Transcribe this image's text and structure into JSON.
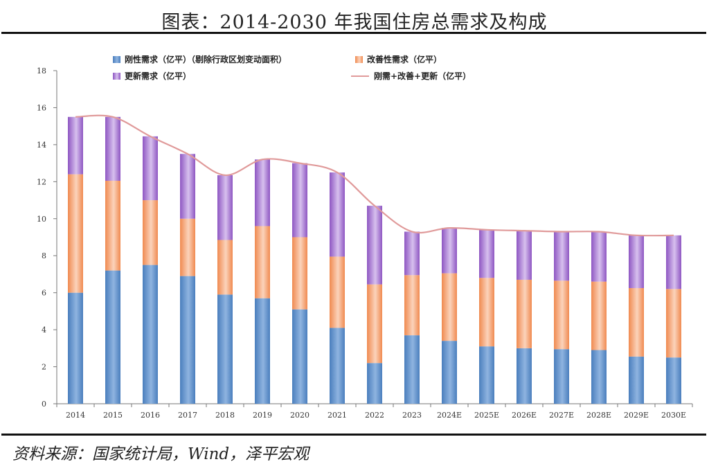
{
  "title": "图表：2014-2030 年我国住房总需求及构成",
  "source": "资料来源：国家统计局，Wind，泽平宏观",
  "colors": {
    "rigid": "#4a7ebd",
    "improve": "#f08a50",
    "renew": "#8e56c2",
    "line": "#e09a9a"
  },
  "chart_data": {
    "type": "bar",
    "stacked": true,
    "categories": [
      "2014",
      "2015",
      "2016",
      "2017",
      "2018",
      "2019",
      "2020",
      "2021",
      "2022",
      "2023",
      "2024E",
      "2025E",
      "2026E",
      "2027E",
      "2028E",
      "2029E",
      "2030E"
    ],
    "series": [
      {
        "name": "刚性需求（亿平）（剔除行政区划变动面积）",
        "values": [
          6.0,
          7.2,
          7.5,
          6.9,
          5.9,
          5.7,
          5.1,
          4.1,
          2.2,
          3.7,
          3.4,
          3.1,
          3.0,
          2.95,
          2.9,
          2.55,
          2.5
        ]
      },
      {
        "name": "改善性需求（亿平）",
        "values": [
          6.4,
          4.85,
          3.5,
          3.1,
          2.95,
          3.9,
          3.9,
          3.85,
          4.25,
          3.25,
          3.65,
          3.7,
          3.7,
          3.7,
          3.7,
          3.7,
          3.7
        ]
      },
      {
        "name": "更新需求（亿平）",
        "values": [
          3.1,
          3.45,
          3.45,
          3.5,
          3.5,
          3.6,
          4.0,
          4.55,
          4.25,
          2.35,
          2.45,
          2.6,
          2.65,
          2.65,
          2.7,
          2.85,
          2.9
        ]
      },
      {
        "name": "刚需+改善+更新（亿平）",
        "type": "line",
        "values": [
          15.5,
          15.5,
          14.45,
          13.5,
          12.35,
          13.2,
          13.0,
          12.5,
          10.7,
          9.3,
          9.5,
          9.4,
          9.35,
          9.3,
          9.3,
          9.1,
          9.1
        ]
      }
    ],
    "ylim": [
      0,
      18
    ],
    "yticks": [
      0,
      2,
      4,
      6,
      8,
      10,
      12,
      14,
      16,
      18
    ],
    "grid": false,
    "legend": "top"
  }
}
